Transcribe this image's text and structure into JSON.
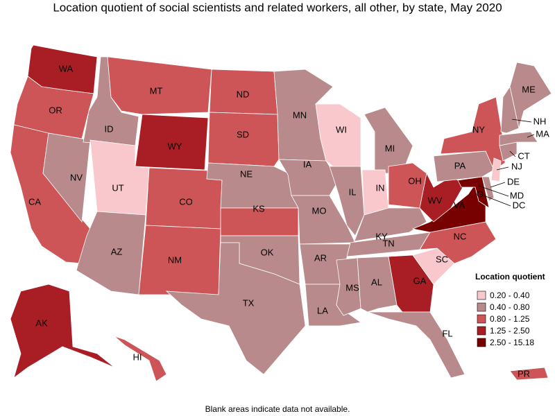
{
  "title": "Location quotient of social scientists and related workers, all other, by state, May 2020",
  "legend": {
    "title": "Location quotient",
    "items": [
      {
        "label": "0.20 - 0.40",
        "color": "#f9c8cc"
      },
      {
        "label": "0.40 - 0.80",
        "color": "#b98a8b"
      },
      {
        "label": "0.80 - 1.25",
        "color": "#cd5557"
      },
      {
        "label": "1.25 - 2.50",
        "color": "#a91e24"
      },
      {
        "label": "2.50 - 15.18",
        "color": "#770000"
      }
    ]
  },
  "states": [
    {
      "abbr": "WA",
      "bin": 3
    },
    {
      "abbr": "OR",
      "bin": 2
    },
    {
      "abbr": "CA",
      "bin": 2
    },
    {
      "abbr": "NV",
      "bin": 1
    },
    {
      "abbr": "ID",
      "bin": 1
    },
    {
      "abbr": "MT",
      "bin": 2
    },
    {
      "abbr": "WY",
      "bin": 3
    },
    {
      "abbr": "UT",
      "bin": 0
    },
    {
      "abbr": "AZ",
      "bin": 1
    },
    {
      "abbr": "CO",
      "bin": 2
    },
    {
      "abbr": "NM",
      "bin": 2
    },
    {
      "abbr": "ND",
      "bin": 2
    },
    {
      "abbr": "SD",
      "bin": 2
    },
    {
      "abbr": "NE",
      "bin": 1
    },
    {
      "abbr": "KS",
      "bin": 2
    },
    {
      "abbr": "OK",
      "bin": 1
    },
    {
      "abbr": "TX",
      "bin": 1
    },
    {
      "abbr": "MN",
      "bin": 1
    },
    {
      "abbr": "IA",
      "bin": 1
    },
    {
      "abbr": "MO",
      "bin": 1
    },
    {
      "abbr": "AR",
      "bin": 1
    },
    {
      "abbr": "LA",
      "bin": 1
    },
    {
      "abbr": "WI",
      "bin": 0
    },
    {
      "abbr": "IL",
      "bin": 1
    },
    {
      "abbr": "MI",
      "bin": 1
    },
    {
      "abbr": "IN",
      "bin": 0
    },
    {
      "abbr": "OH",
      "bin": 2
    },
    {
      "abbr": "KY",
      "bin": 1
    },
    {
      "abbr": "TN",
      "bin": 1
    },
    {
      "abbr": "MS",
      "bin": 1
    },
    {
      "abbr": "AL",
      "bin": 1
    },
    {
      "abbr": "GA",
      "bin": 3
    },
    {
      "abbr": "FL",
      "bin": 1
    },
    {
      "abbr": "SC",
      "bin": 0
    },
    {
      "abbr": "NC",
      "bin": 2
    },
    {
      "abbr": "VA",
      "bin": 4
    },
    {
      "abbr": "WV",
      "bin": 3
    },
    {
      "abbr": "MD",
      "bin": 4
    },
    {
      "abbr": "DE",
      "bin": 1
    },
    {
      "abbr": "PA",
      "bin": 1
    },
    {
      "abbr": "NY",
      "bin": 2
    },
    {
      "abbr": "NJ",
      "bin": 0
    },
    {
      "abbr": "CT",
      "bin": 1
    },
    {
      "abbr": "MA",
      "bin": 1
    },
    {
      "abbr": "NH",
      "bin": 1
    },
    {
      "abbr": "ME",
      "bin": 1
    },
    {
      "abbr": "DC",
      "bin": 4
    },
    {
      "abbr": "AK",
      "bin": 3
    },
    {
      "abbr": "HI",
      "bin": 2
    },
    {
      "abbr": "PR",
      "bin": 2
    }
  ],
  "footnote": "Blank areas indicate data not available."
}
